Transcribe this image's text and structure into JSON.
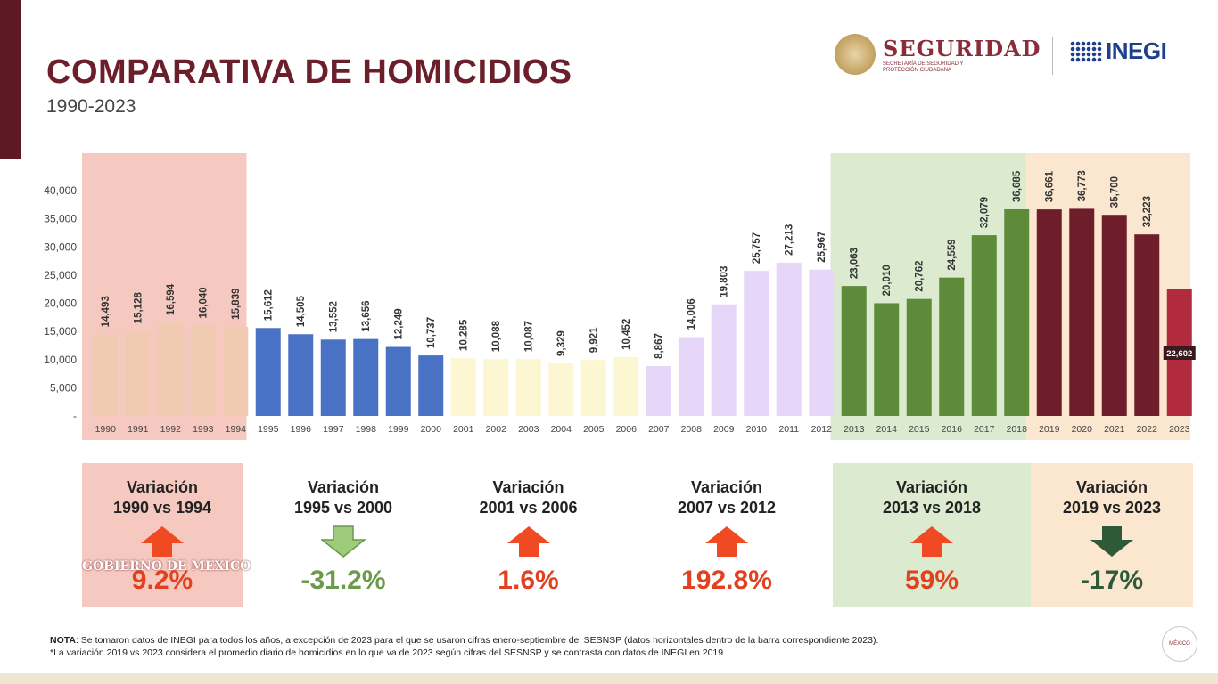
{
  "header": {
    "title": "COMPARATIVA DE HOMICIDIOS",
    "subtitle": "1990-2023",
    "seguridad_logo_text": "SEGURIDAD",
    "seguridad_logo_subtext": "SECRETARÍA DE SEGURIDAD Y PROTECCIÓN CIUDADANA",
    "inegi_logo_text": "INEGI"
  },
  "chart_data": {
    "type": "bar",
    "title": "COMPARATIVA DE HOMICIDIOS",
    "subtitle": "1990-2023",
    "categories": [
      "1990",
      "1991",
      "1992",
      "1993",
      "1994",
      "1995",
      "1996",
      "1997",
      "1998",
      "1999",
      "2000",
      "2001",
      "2002",
      "2003",
      "2004",
      "2005",
      "2006",
      "2007",
      "2008",
      "2009",
      "2010",
      "2011",
      "2012",
      "2013",
      "2014",
      "2015",
      "2016",
      "2017",
      "2018",
      "2019",
      "2020",
      "2021",
      "2022",
      "2023"
    ],
    "values": [
      14493,
      15128,
      16594,
      16040,
      15839,
      15612,
      14505,
      13552,
      13656,
      12249,
      10737,
      10285,
      10088,
      10087,
      9329,
      9921,
      10452,
      8867,
      14006,
      19803,
      25757,
      27213,
      25967,
      23063,
      20010,
      20762,
      24559,
      32079,
      36685,
      36661,
      36773,
      35700,
      32223,
      22602
    ],
    "value_labels": [
      "14,493",
      "15,128",
      "16,594",
      "16,040",
      "15,839",
      "15,612",
      "14,505",
      "13,552",
      "13,656",
      "12,249",
      "10,737",
      "10,285",
      "10,088",
      "10,087",
      "9,329",
      "9,921",
      "10,452",
      "8,867",
      "14,006",
      "19,803",
      "25,757",
      "27,213",
      "25,967",
      "23,063",
      "20,010",
      "20,762",
      "24,559",
      "32,079",
      "36,685",
      "36,661",
      "36,773",
      "35,700",
      "32,223",
      "22,602"
    ],
    "y_ticks": [
      "-",
      "5,000",
      "10,000",
      "15,000",
      "20,000",
      "25,000",
      "30,000",
      "35,000",
      "40,000"
    ],
    "ylim": [
      0,
      40000
    ],
    "grid": false,
    "groups": [
      {
        "start": 0,
        "end": 4,
        "color": "#f0cbb2",
        "panel": "#f6c9c0"
      },
      {
        "start": 5,
        "end": 10,
        "color": "#4a72c4",
        "panel": ""
      },
      {
        "start": 11,
        "end": 16,
        "color": "#fdf6d2",
        "panel": ""
      },
      {
        "start": 17,
        "end": 22,
        "color": "#e6d6f8",
        "panel": ""
      },
      {
        "start": 23,
        "end": 28,
        "color": "#5d8b3a",
        "panel": "#dcebd0"
      },
      {
        "start": 29,
        "end": 33,
        "color": "#6e1e2b",
        "panel": "#fbe6cf"
      }
    ],
    "highlight_last_color": "#b12a3e"
  },
  "variations": [
    {
      "heading_1": "Variación",
      "heading_2": "1990 vs 1994",
      "value": "9.2%",
      "direction": "up",
      "arrow_color": "#f04a22",
      "value_color": "#e2401f",
      "background": "#f6c9c0"
    },
    {
      "heading_1": "Variación",
      "heading_2": "1995 vs 2000",
      "value": "-31.2%",
      "direction": "down",
      "arrow_color": "#9ccc7a",
      "value_color": "#6a9a4a",
      "background": ""
    },
    {
      "heading_1": "Variación",
      "heading_2": "2001 vs 2006",
      "value": "1.6%",
      "direction": "up",
      "arrow_color": "#f04a22",
      "value_color": "#e2401f",
      "background": ""
    },
    {
      "heading_1": "Variación",
      "heading_2": "2007 vs 2012",
      "value": "192.8%",
      "direction": "up",
      "arrow_color": "#f04a22",
      "value_color": "#e2401f",
      "background": ""
    },
    {
      "heading_1": "Variación",
      "heading_2": "2013 vs 2018",
      "value": "59%",
      "direction": "up",
      "arrow_color": "#f04a22",
      "value_color": "#e2401f",
      "background": "#dcebd0"
    },
    {
      "heading_1": "Variación",
      "heading_2": "2019 vs 2023",
      "value": "-17%",
      "direction": "down",
      "arrow_color": "#2f5a3a",
      "value_color": "#2f5a3a",
      "background": "#fbe6cf"
    }
  ],
  "watermark": {
    "text": "GOBIERNO DE MÉXICO"
  },
  "note": {
    "label": "NOTA",
    "line1": ": Se tomaron datos de INEGI para todos los años, a excepción de 2023 para el que se usaron cifras enero-septiembre del SESNSP (datos horizontales dentro de la barra correspondiente 2023).",
    "line2": "*La variación 2019 vs 2023 considera el promedio diario de homicidios en lo que va de 2023 según cifras del SESNSP y se contrasta con datos de INEGI en 2019."
  },
  "badge": {
    "text": "MÉXICO"
  }
}
